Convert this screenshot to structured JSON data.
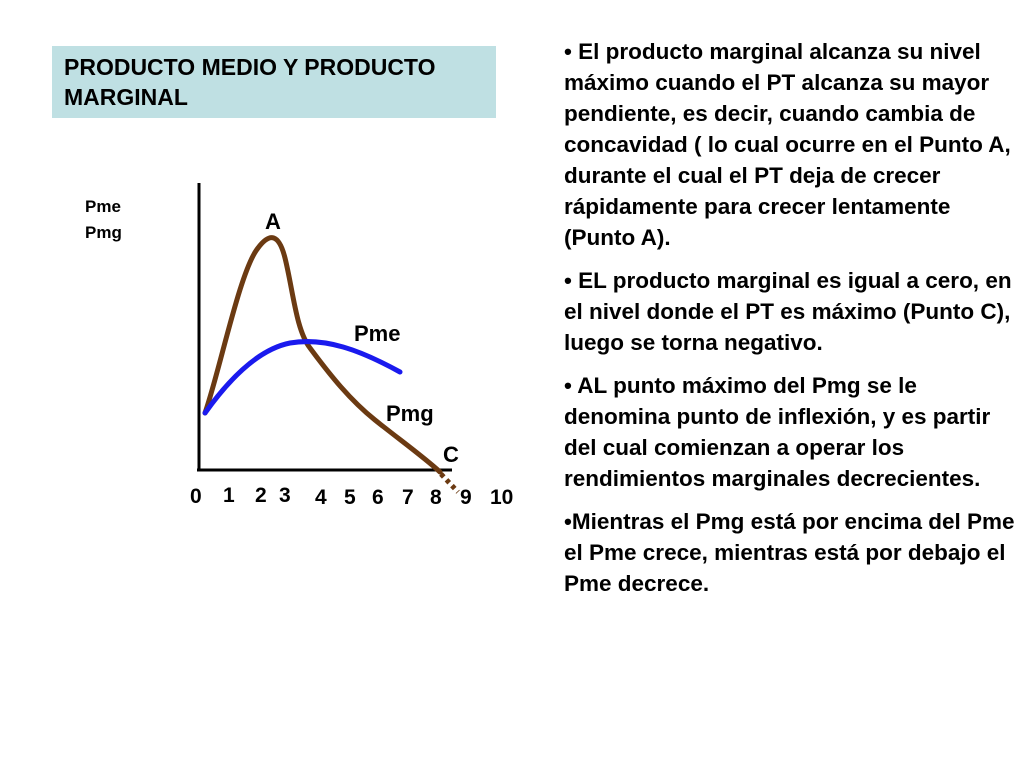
{
  "title": "PRODUCTO MEDIO Y PRODUCTO MARGINAL",
  "bullets": [
    "• El producto marginal alcanza su nivel máximo cuando el PT alcanza su mayor pendiente, es decir, cuando cambia de concavidad ( lo cual ocurre en el Punto A, durante el cual el PT deja de crecer rápidamente para crecer lentamente (Punto A).",
    "• EL producto marginal es igual a cero, en el nivel donde el PT es máximo (Punto C), luego se torna negativo.",
    "• AL punto máximo del Pmg se le denomina punto de inflexión, y es partir del cual comienzan a operar los rendimientos marginales decrecientes.",
    "•Mientras el Pmg está por encima del Pme el Pme crece, mientras está por debajo el Pme decrece."
  ],
  "diagram": {
    "y_axis_label_1": "Pme",
    "y_axis_label_2": "Pmg",
    "point_a": "A",
    "point_c": "C",
    "curve_pme_label": "Pme",
    "curve_pmg_label": "Pmg",
    "x_ticks": [
      "0",
      "1",
      "2",
      "3",
      "4",
      "5",
      "6",
      "7",
      "8",
      "9",
      "10"
    ],
    "colors": {
      "pmg": "#6b3a12",
      "pme": "#1a1aee",
      "title_bg": "#bfe0e3"
    }
  }
}
